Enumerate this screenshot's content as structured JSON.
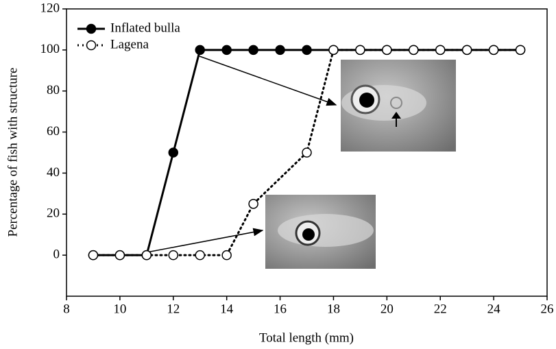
{
  "chart_data": {
    "type": "line",
    "x_label": "Total length (mm)",
    "y_label": "Percentage of fish with structure",
    "xlim": [
      8,
      26
    ],
    "xticks": [
      8,
      10,
      12,
      14,
      16,
      18,
      20,
      22,
      24,
      26
    ],
    "ylim": [
      -20,
      120
    ],
    "yticks": [
      0,
      20,
      40,
      60,
      80,
      100,
      120
    ],
    "legend": "upper left",
    "series": [
      {
        "name": "Inflated bulla",
        "color": "#000000",
        "marker": "filled",
        "linestyle": "solid",
        "x": [
          9,
          10,
          11,
          12,
          13,
          14,
          15,
          16,
          17,
          18,
          19,
          20,
          21,
          22,
          23,
          24,
          25
        ],
        "values": [
          0,
          0,
          0,
          50,
          100,
          100,
          100,
          100,
          100,
          100,
          100,
          100,
          100,
          100,
          100,
          100,
          100
        ]
      },
      {
        "name": "Lagena",
        "color": "#000000",
        "marker": "open",
        "linestyle": "dotted",
        "x": [
          9,
          10,
          11,
          12,
          13,
          14,
          15,
          17,
          18,
          19,
          20,
          21,
          22,
          23,
          24,
          25
        ],
        "values": [
          0,
          0,
          0,
          0,
          0,
          0,
          25,
          50,
          100,
          100,
          100,
          100,
          100,
          100,
          100,
          100
        ]
      }
    ]
  }
}
